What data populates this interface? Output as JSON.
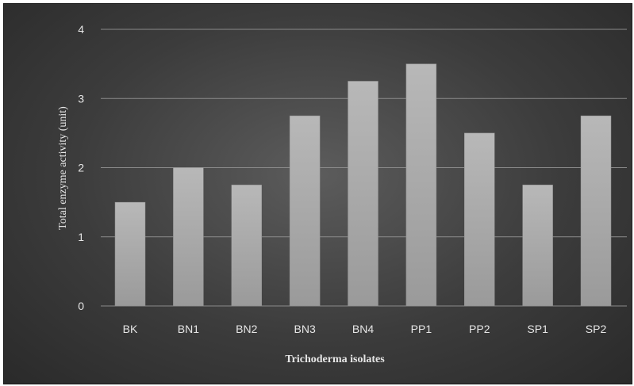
{
  "chart_data": {
    "type": "bar",
    "categories": [
      "BK",
      "BN1",
      "BN2",
      "BN3",
      "BN4",
      "PP1",
      "PP2",
      "SP1",
      "SP2"
    ],
    "values": [
      1.5,
      2.0,
      1.75,
      2.75,
      3.25,
      3.5,
      2.5,
      1.75,
      2.75
    ],
    "xlabel": "Trichoderma isolates",
    "ylabel": "Total enzyme activity (unit)",
    "ylim": [
      0,
      4
    ],
    "yticks": [
      "0",
      "1",
      "2",
      "3",
      "4"
    ],
    "grid": true,
    "legend": "none",
    "colors": {
      "background": "#3c3c3c",
      "bar": "#a8a8a8",
      "grid": "#8a8a8a",
      "text": "#e6e6e6"
    }
  }
}
